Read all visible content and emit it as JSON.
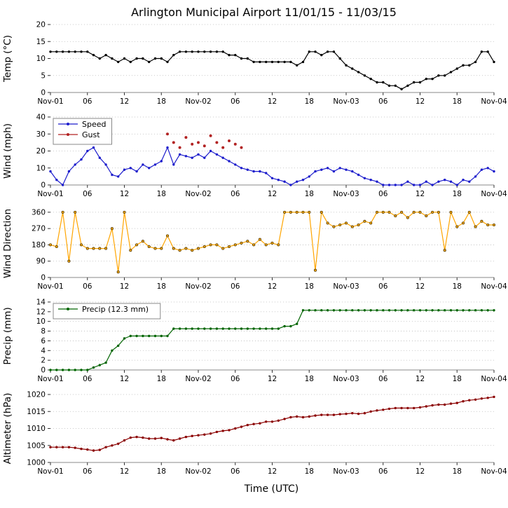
{
  "chart_data": {
    "type": "line",
    "title": "Arlington Municipal Airport 11/01/15 - 11/03/15",
    "xlabel": "Time (UTC)",
    "x_max": 72,
    "xticks": [
      0,
      6,
      12,
      18,
      24,
      30,
      36,
      42,
      48,
      54,
      60,
      66,
      72
    ],
    "xtick_labels": [
      "Nov-01",
      "06",
      "12",
      "18",
      "Nov-02",
      "06",
      "12",
      "18",
      "Nov-03",
      "06",
      "12",
      "18",
      "Nov-04"
    ],
    "grid_color": "#bbbbbb",
    "panels": [
      {
        "ylabel": "Temp (°C)",
        "ylim": [
          0,
          20
        ],
        "yticks": [
          0,
          5,
          10,
          15,
          20
        ],
        "legend": false,
        "series": [
          {
            "name": "Temp",
            "color": "#000000",
            "values": [
              12,
              12,
              12,
              12,
              12,
              12,
              12,
              11,
              10,
              11,
              10,
              9,
              10,
              9,
              10,
              10,
              9,
              10,
              10,
              9,
              11,
              12,
              12,
              12,
              12,
              12,
              12,
              12,
              12,
              11,
              11,
              10,
              10,
              9,
              9,
              9,
              9,
              9,
              9,
              9,
              8,
              9,
              12,
              12,
              11,
              12,
              12,
              10,
              8,
              7,
              6,
              5,
              4,
              3,
              3,
              2,
              2,
              1,
              2,
              3,
              3,
              4,
              4,
              5,
              5,
              6,
              7,
              8,
              8,
              9,
              12,
              12,
              9
            ]
          }
        ]
      },
      {
        "ylabel": "Wind (mph)",
        "ylim": [
          0,
          40
        ],
        "yticks": [
          0,
          10,
          20,
          30,
          40
        ],
        "legend": true,
        "series": [
          {
            "name": "Speed",
            "color": "#1c1ccc",
            "values": [
              8,
              3,
              0,
              8,
              12,
              15,
              20,
              22,
              16,
              12,
              6,
              5,
              9,
              10,
              8,
              12,
              10,
              12,
              14,
              22,
              12,
              18,
              17,
              16,
              18,
              16,
              20,
              18,
              16,
              14,
              12,
              10,
              9,
              8,
              8,
              7,
              4,
              3,
              2,
              0,
              2,
              3,
              5,
              8,
              9,
              10,
              8,
              10,
              9,
              8,
              6,
              4,
              3,
              2,
              0,
              0,
              0,
              0,
              2,
              0,
              0,
              2,
              0,
              2,
              3,
              2,
              0,
              3,
              2,
              5,
              9,
              10,
              8
            ]
          },
          {
            "name": "Gust",
            "color": "#b22222",
            "type": "scatter",
            "values": [
              null,
              null,
              null,
              null,
              null,
              null,
              null,
              null,
              null,
              null,
              null,
              null,
              null,
              null,
              null,
              null,
              null,
              null,
              null,
              30,
              25,
              22,
              28,
              24,
              25,
              23,
              29,
              25,
              22,
              26,
              24,
              22,
              null,
              null,
              null,
              null,
              null,
              null,
              null,
              null,
              null,
              null,
              null,
              null,
              null,
              null,
              null,
              null,
              null,
              null,
              null,
              null,
              null,
              null,
              null,
              null,
              null,
              null,
              null,
              null,
              null,
              null,
              null,
              null,
              null,
              null,
              null,
              null,
              null,
              null,
              null,
              null,
              null
            ]
          }
        ]
      },
      {
        "ylabel": "Wind Direction",
        "ylim": [
          0,
          375
        ],
        "yticks": [
          0,
          90,
          180,
          270,
          360
        ],
        "legend": false,
        "series": [
          {
            "name": "Direction",
            "color": "#ffa500",
            "marker_fill": "#e8a000",
            "marker_edge": "#4d3300",
            "values": [
              180,
              170,
              360,
              90,
              360,
              180,
              160,
              160,
              160,
              160,
              270,
              30,
              360,
              150,
              180,
              200,
              170,
              160,
              160,
              230,
              160,
              150,
              160,
              150,
              160,
              170,
              180,
              180,
              160,
              170,
              180,
              190,
              200,
              180,
              210,
              180,
              190,
              180,
              360,
              360,
              360,
              360,
              360,
              40,
              360,
              300,
              280,
              290,
              300,
              280,
              290,
              310,
              300,
              360,
              360,
              360,
              340,
              360,
              330,
              360,
              360,
              340,
              360,
              360,
              150,
              360,
              280,
              300,
              360,
              280,
              310,
              290,
              290
            ]
          }
        ]
      },
      {
        "ylabel": "Precip (mm)",
        "ylim": [
          0,
          14
        ],
        "yticks": [
          0,
          2,
          4,
          6,
          8,
          10,
          12,
          14
        ],
        "legend": true,
        "series": [
          {
            "name": "Precip (12.3 mm)",
            "color": "#006400",
            "values": [
              0,
              0,
              0,
              0,
              0,
              0,
              0,
              0.5,
              1,
              1.5,
              4,
              5,
              6.5,
              7,
              7,
              7,
              7,
              7,
              7,
              7,
              8.5,
              8.5,
              8.5,
              8.5,
              8.5,
              8.5,
              8.5,
              8.5,
              8.5,
              8.5,
              8.5,
              8.5,
              8.5,
              8.5,
              8.5,
              8.5,
              8.5,
              8.5,
              9,
              9,
              9.5,
              12.3,
              12.3,
              12.3,
              12.3,
              12.3,
              12.3,
              12.3,
              12.3,
              12.3,
              12.3,
              12.3,
              12.3,
              12.3,
              12.3,
              12.3,
              12.3,
              12.3,
              12.3,
              12.3,
              12.3,
              12.3,
              12.3,
              12.3,
              12.3,
              12.3,
              12.3,
              12.3,
              12.3,
              12.3,
              12.3,
              12.3,
              12.3
            ]
          }
        ]
      },
      {
        "ylabel": "Altimeter (hPa)",
        "ylim": [
          1000,
          1020
        ],
        "yticks": [
          1000,
          1005,
          1010,
          1015,
          1020
        ],
        "legend": false,
        "series": [
          {
            "name": "Altimeter",
            "color": "#8b0000",
            "values": [
              1004.5,
              1004.5,
              1004.5,
              1004.5,
              1004.3,
              1004,
              1003.8,
              1003.5,
              1003.7,
              1004.5,
              1005,
              1005.5,
              1006.5,
              1007.3,
              1007.5,
              1007.3,
              1007,
              1007,
              1007.2,
              1006.8,
              1006.5,
              1007,
              1007.5,
              1007.8,
              1008,
              1008.2,
              1008.5,
              1009,
              1009.3,
              1009.5,
              1010,
              1010.5,
              1011,
              1011.3,
              1011.5,
              1012,
              1012,
              1012.3,
              1012.8,
              1013.3,
              1013.5,
              1013.3,
              1013.5,
              1013.8,
              1014,
              1014,
              1014,
              1014.2,
              1014.3,
              1014.5,
              1014.3,
              1014.5,
              1015,
              1015.3,
              1015.5,
              1015.8,
              1016,
              1016,
              1016,
              1016,
              1016.2,
              1016.5,
              1016.8,
              1017,
              1017,
              1017.3,
              1017.5,
              1018,
              1018.3,
              1018.5,
              1018.8,
              1019,
              1019.3
            ]
          }
        ]
      }
    ]
  }
}
